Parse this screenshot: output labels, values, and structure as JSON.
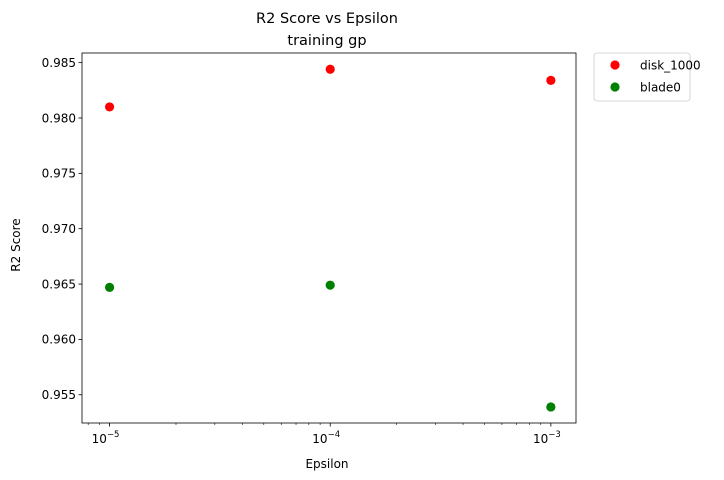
{
  "chart_data": {
    "type": "scatter",
    "title": "R2 Score vs Epsilon",
    "subtitle": "training gp",
    "xlabel": "Epsilon",
    "ylabel": "R2 Score",
    "xscale": "log",
    "xlim": [
      7.5e-06,
      0.0013
    ],
    "ylim": [
      0.95245,
      0.98587
    ],
    "xticks": [
      {
        "value": 1e-05,
        "base": "10",
        "exp": "−5"
      },
      {
        "value": 0.0001,
        "base": "10",
        "exp": "−4"
      },
      {
        "value": 0.001,
        "base": "10",
        "exp": "−3"
      }
    ],
    "yticks": [
      {
        "value": 0.955,
        "label": "0.955"
      },
      {
        "value": 0.96,
        "label": "0.960"
      },
      {
        "value": 0.965,
        "label": "0.965"
      },
      {
        "value": 0.97,
        "label": "0.970"
      },
      {
        "value": 0.975,
        "label": "0.975"
      },
      {
        "value": 0.98,
        "label": "0.980"
      },
      {
        "value": 0.985,
        "label": "0.985"
      }
    ],
    "grid": false,
    "legend_position": "outside-top-right",
    "series": [
      {
        "name": "disk_1000",
        "color": "#ff0000",
        "x": [
          1e-05,
          0.0001,
          0.001
        ],
        "y": [
          0.981,
          0.9844,
          0.9834
        ]
      },
      {
        "name": "blade0",
        "color": "#008000",
        "x": [
          1e-05,
          0.0001,
          0.001
        ],
        "y": [
          0.9647,
          0.9649,
          0.9539
        ]
      }
    ]
  }
}
